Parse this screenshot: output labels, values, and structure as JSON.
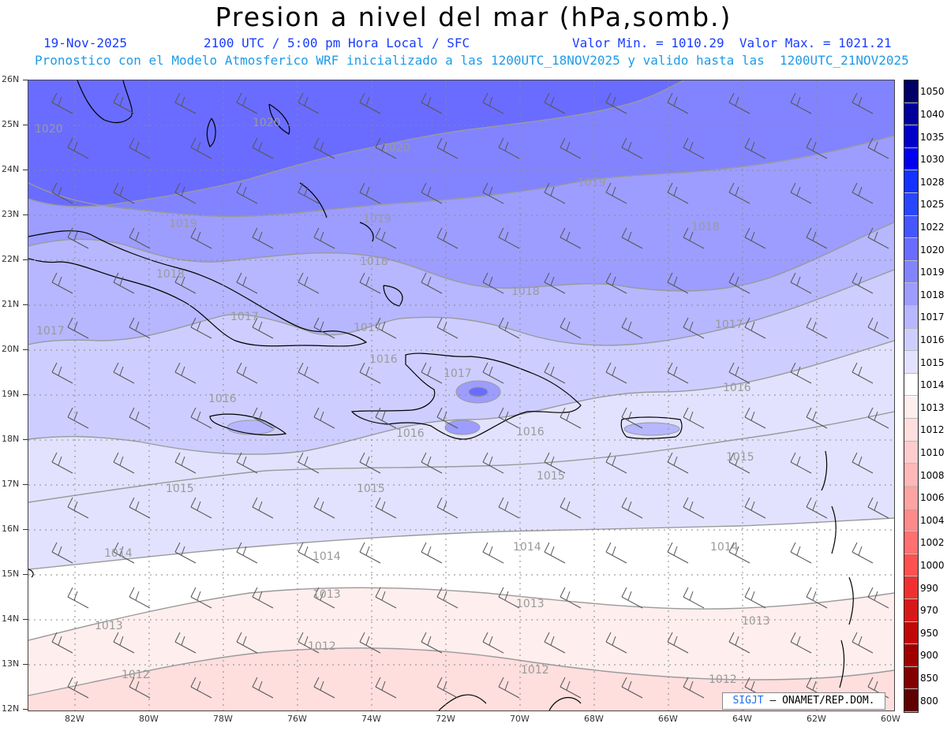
{
  "header": {
    "title": "Presion a nivel del mar (hPa,somb.)",
    "date": "19-Nov-2025",
    "time_info": "2100 UTC / 5:00 pm Hora Local / SFC",
    "min_max": "Valor Min. = 1010.29  Valor Max. = 1021.21",
    "forecast_info": "Pronostico con el Modelo Atmosferico WRF inicializado a las 1200UTC_18NOV2025 y valido hasta las  1200UTC_21NOV2025"
  },
  "credit": {
    "sig": "SIGJT",
    "org": "– ONAMET/REP.DOM."
  },
  "lat_labels": [
    "26N",
    "25N",
    "24N",
    "23N",
    "22N",
    "21N",
    "20N",
    "19N",
    "18N",
    "17N",
    "16N",
    "15N",
    "14N",
    "13N",
    "12N"
  ],
  "lon_labels": [
    "82W",
    "80W",
    "78W",
    "76W",
    "74W",
    "72W",
    "70W",
    "68W",
    "66W",
    "64W",
    "62W",
    "60W"
  ],
  "colorbar": {
    "labels": [
      "1050",
      "1040",
      "1035",
      "1030",
      "1028",
      "1025",
      "1022",
      "1020",
      "1019",
      "1018",
      "1017",
      "1016",
      "1015",
      "1014",
      "1013",
      "1012",
      "1010",
      "1008",
      "1006",
      "1004",
      "1002",
      "1000",
      "990",
      "970",
      "950",
      "900",
      "850",
      "800"
    ],
    "colors": [
      "#000066",
      "#00009a",
      "#0000c8",
      "#0000f0",
      "#1432ff",
      "#2846ff",
      "#4656ff",
      "#6a6cff",
      "#8284ff",
      "#9c9dff",
      "#b6b7ff",
      "#cdceff",
      "#e2e2ff",
      "#ffffff",
      "#ffeeee",
      "#ffdede",
      "#ffcccc",
      "#ffb8b8",
      "#ffa2a2",
      "#ff8a8a",
      "#ff7070",
      "#ff5050",
      "#f03030",
      "#d81818",
      "#c00808",
      "#a00000",
      "#820000",
      "#600000"
    ]
  },
  "contour_labels": [
    {
      "text": "1020"
    },
    {
      "text": "1020"
    },
    {
      "text": "1020"
    },
    {
      "text": "1019"
    },
    {
      "text": "1019"
    },
    {
      "text": "1019"
    },
    {
      "text": "1018"
    },
    {
      "text": "1018"
    },
    {
      "text": "1018"
    },
    {
      "text": "1018"
    },
    {
      "text": "1017"
    },
    {
      "text": "1017"
    },
    {
      "text": "1017"
    },
    {
      "text": "1017"
    },
    {
      "text": "1017"
    },
    {
      "text": "1016"
    },
    {
      "text": "1016"
    },
    {
      "text": "1016"
    },
    {
      "text": "1016"
    },
    {
      "text": "1016"
    },
    {
      "text": "1015"
    },
    {
      "text": "1015"
    },
    {
      "text": "1015"
    },
    {
      "text": "1015"
    },
    {
      "text": "1014"
    },
    {
      "text": "1014"
    },
    {
      "text": "1014"
    },
    {
      "text": "1014"
    },
    {
      "text": "1013"
    },
    {
      "text": "1013"
    },
    {
      "text": "1013"
    },
    {
      "text": "1013"
    },
    {
      "text": "1012"
    },
    {
      "text": "1012"
    },
    {
      "text": "1012"
    },
    {
      "text": "1012"
    }
  ]
}
